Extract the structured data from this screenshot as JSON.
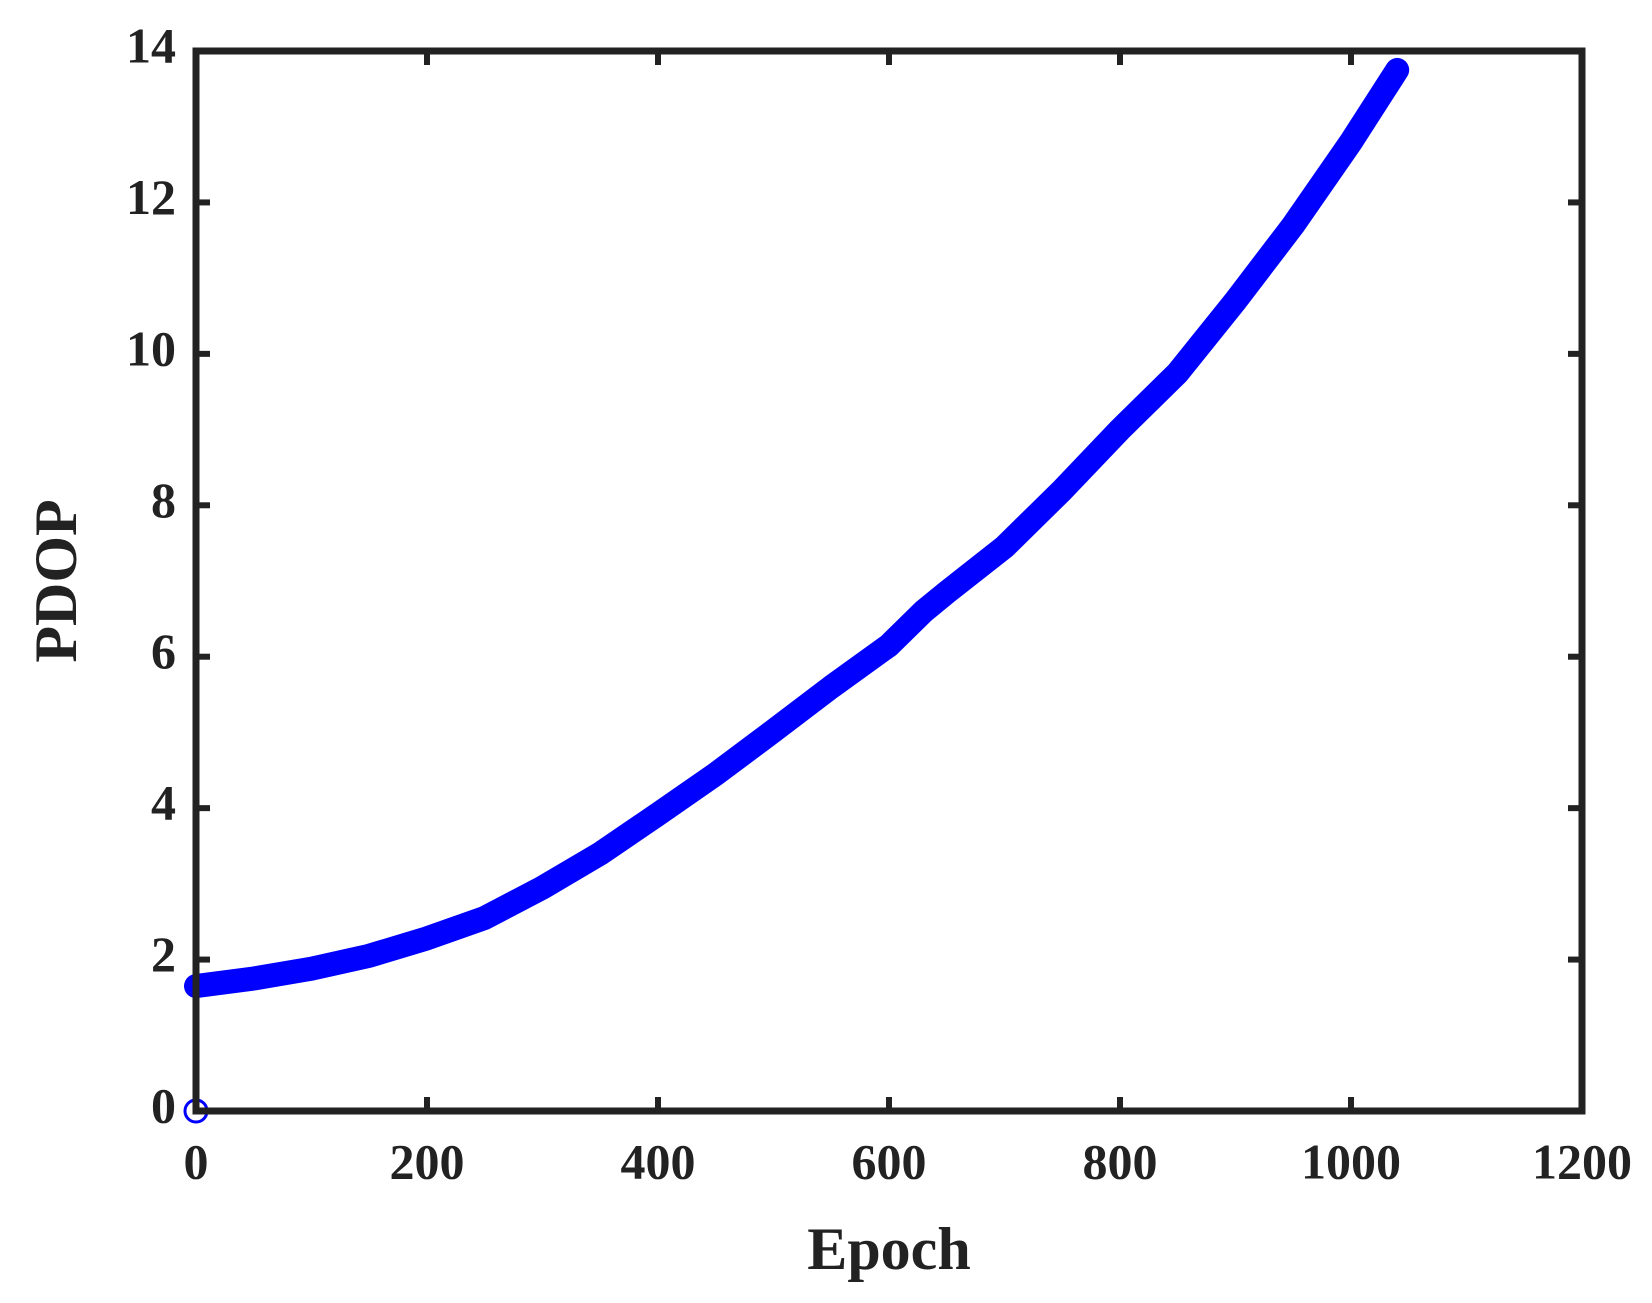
{
  "chart_data": {
    "type": "line",
    "xlabel": "Epoch",
    "ylabel": "PDOP",
    "xlim": [
      0,
      1200
    ],
    "ylim": [
      0,
      14
    ],
    "xticks": [
      0,
      200,
      400,
      600,
      800,
      1000,
      1200
    ],
    "yticks": [
      0,
      2,
      4,
      6,
      8,
      10,
      12,
      14
    ],
    "series": [
      {
        "color": "#0000ff",
        "marker": "filled",
        "x": [
          0,
          50,
          100,
          150,
          200,
          250,
          300,
          350,
          400,
          450,
          500,
          550,
          600,
          630,
          650,
          700,
          750,
          800,
          850,
          900,
          950,
          1000,
          1040
        ],
        "values": [
          1.65,
          1.75,
          1.88,
          2.05,
          2.28,
          2.55,
          2.95,
          3.4,
          3.92,
          4.45,
          5.02,
          5.6,
          6.15,
          6.6,
          6.85,
          7.45,
          8.2,
          9.0,
          9.75,
          10.7,
          11.7,
          12.8,
          13.75
        ]
      },
      {
        "color": "#0000ff",
        "marker": "open",
        "x": [
          0
        ],
        "values": [
          0
        ]
      }
    ]
  }
}
